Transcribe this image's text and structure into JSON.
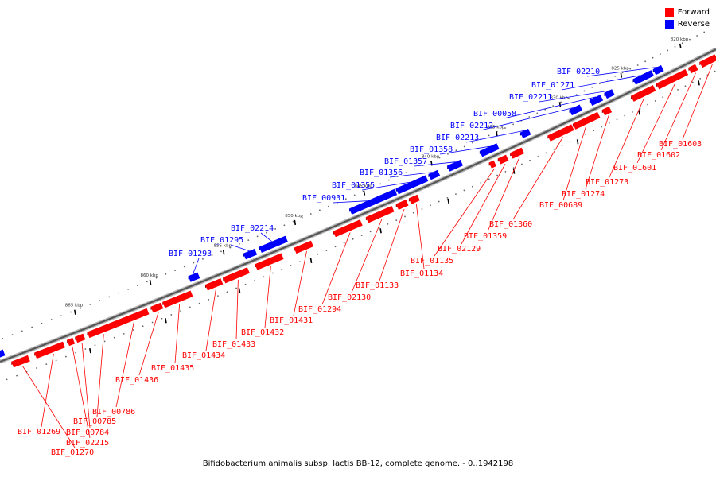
{
  "legend": {
    "forward_label": "Forward",
    "reverse_label": "Reverse",
    "forward_color": "#ff0000",
    "reverse_color": "#0000ff"
  },
  "caption": "Bifidobacterium animalis subsp. lactis BB-12, complete genome. - 0..1942198",
  "ticks": [
    "820 kbp",
    "825 kbp",
    "830 kbp",
    "835 kbp",
    "840 kbp",
    "845 kbp",
    "850 kbp",
    "855 kbp",
    "860 kbp",
    "865 kbp"
  ],
  "reverse_genes": [
    "BIF_02210",
    "BIF_01271",
    "BIF_02211",
    "BIF_00058",
    "BIF_02212",
    "BIF_02213",
    "BIF_01358",
    "BIF_01357",
    "BIF_01356",
    "BIF_01355",
    "BIF_00931",
    "BIF_02214",
    "BIF_01295",
    "BIF_01293"
  ],
  "forward_genes": [
    "BIF_01603",
    "BIF_01602",
    "BIF_01601",
    "BIF_01273",
    "BIF_01274",
    "BIF_00689",
    "BIF_01360",
    "BIF_01359",
    "BIF_02129",
    "BIF_01135",
    "BIF_01134",
    "BIF_01133",
    "BIF_02130",
    "BIF_01294",
    "BIF_01431",
    "BIF_01432",
    "BIF_01433",
    "BIF_01434",
    "BIF_01435",
    "BIF_01436",
    "BIF_00786",
    "BIF_00785",
    "BIF_00784",
    "BIF_01269",
    "BIF_02215",
    "BIF_01270"
  ]
}
